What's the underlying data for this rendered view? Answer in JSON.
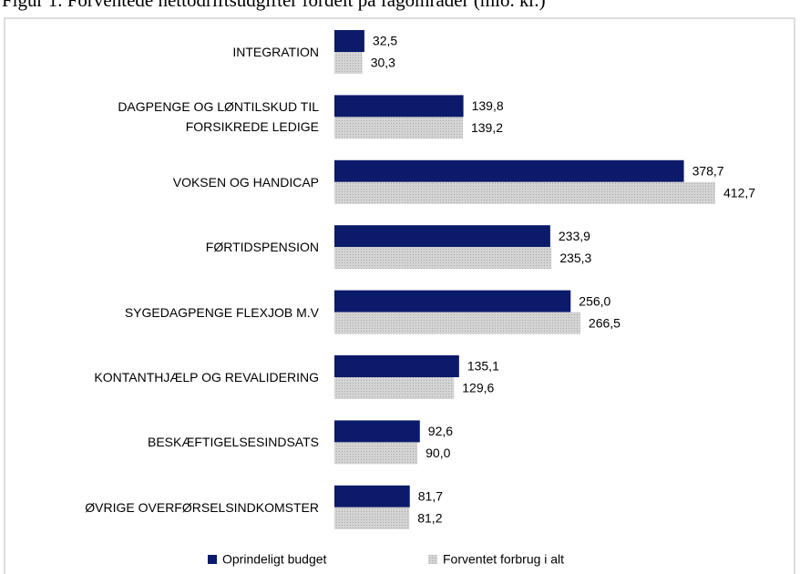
{
  "chart_data": {
    "type": "bar",
    "orientation": "horizontal",
    "title": "Figur 1. Forventede nettodriftsudgifter fordelt på fagområder (mio. kr.)",
    "categories": [
      "INTEGRATION",
      "DAGPENGE OG LØNTILSKUD TIL\nFORSIKREDE LEDIGE",
      "VOKSEN OG HANDICAP",
      "FØRTIDSPENSION",
      "SYGEDAGPENGE FLEXJOB M.V",
      "KONTANTHJÆLP OG REVALIDERING",
      "BESKÆFTIGELSESINDSATS",
      "ØVRIGE OVERFØRSELSINDKOMSTER"
    ],
    "series": [
      {
        "name": "Oprindeligt budget",
        "color": "#0c1a6b",
        "values": [
          32.5,
          139.8,
          378.7,
          233.9,
          256.0,
          135.1,
          92.6,
          81.7
        ],
        "value_labels": [
          "32,5",
          "139,8",
          "378,7",
          "233,9",
          "256,0",
          "135,1",
          "92,6",
          "81,7"
        ]
      },
      {
        "name": "Forventet forbrug i alt",
        "color": "#c4c4c4",
        "values": [
          30.3,
          139.2,
          412.7,
          235.3,
          266.5,
          129.6,
          90.0,
          81.2
        ],
        "value_labels": [
          "30,3",
          "139,2",
          "412,7",
          "235,3",
          "266,5",
          "129,6",
          "90,0",
          "81,2"
        ]
      }
    ],
    "legend": "bottom"
  }
}
